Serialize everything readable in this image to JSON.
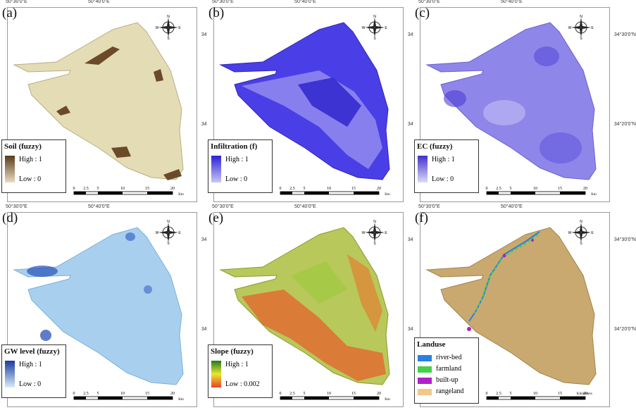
{
  "graticule": {
    "lon1": "50°30'0\"E",
    "lon2": "50°40'0\"E",
    "lat1": "34°30'0\"N",
    "lat2": "34°20'0\"N"
  },
  "scalebar": {
    "ticks": [
      "0",
      "2.5",
      "5",
      "10",
      "15",
      "20"
    ],
    "unit": "Km",
    "unit_f": "Kilometers"
  },
  "compass": {
    "n": "N",
    "s": "S",
    "e": "E",
    "w": "W"
  },
  "panels": [
    {
      "letter": "(a)",
      "legend_title": "Soil (fuzzy)",
      "high": "High : 1",
      "low": "Low : 0",
      "ramp_high": "#5b3a1a",
      "ramp_low": "#e9dcc0",
      "fill": "#e4dcb4"
    },
    {
      "letter": "(b)",
      "legend_title": "Infiltration (f)",
      "high": "High : 1",
      "low": "Low : 0",
      "ramp_high": "#2a22d6",
      "ramp_low": "#c8c6f4",
      "fill": "#4a3ee6"
    },
    {
      "letter": "(c)",
      "legend_title": "EC (fuzzy)",
      "high": "High : 1",
      "low": "Low : 0",
      "ramp_high": "#4030cc",
      "ramp_low": "#dcdaf6",
      "fill": "#8f86ea"
    },
    {
      "letter": "(d)",
      "legend_title": "GW level (fuzzy)",
      "high": "High : 1",
      "low": "Low : 0",
      "ramp_high": "#1c3aa0",
      "ramp_low": "#d8ecf8",
      "fill": "#a8d0ee"
    },
    {
      "letter": "(e)",
      "legend_title": "Slope (fuzzy)",
      "high": "High : 1",
      "low": "Low : 0.002",
      "ramp_high": "#1f7a1f",
      "ramp_mid": "#e8e830",
      "ramp_low": "#e8402a",
      "fill": "#b8c85a"
    },
    {
      "letter": "(f)",
      "legend_title": "Landuse",
      "fill": "#c9a970"
    }
  ],
  "landuse": [
    {
      "label": "river-bed",
      "color": "#2a7fe0"
    },
    {
      "label": "farmland",
      "color": "#44d04a"
    },
    {
      "label": "built-up",
      "color": "#b020c8"
    },
    {
      "label": "rangeland",
      "color": "#f2c888"
    }
  ]
}
